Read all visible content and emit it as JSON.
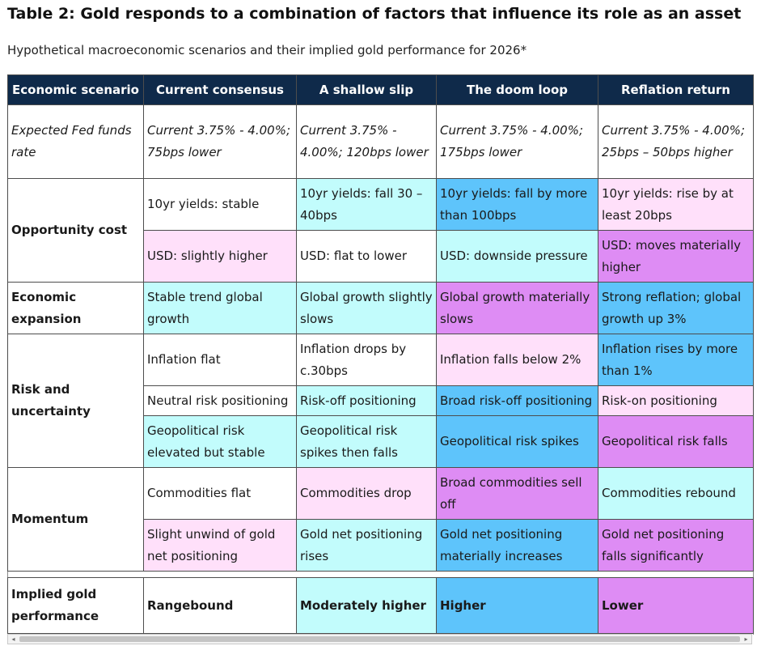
{
  "title": "Table 2: Gold responds to a combination of factors that influence its role as an asset",
  "subtitle": "Hypothetical macroeconomic scenarios and their implied gold performance for 2026*",
  "colors": {
    "header_navy": "#0f2a4a",
    "light_pink": "#ffe0fa",
    "light_cyan": "#c2fcfc",
    "sky_blue": "#5ec4fb",
    "violet": "#de8cf4"
  },
  "table": {
    "headers": [
      "Economic scenario",
      "Current consensus",
      "A shallow slip",
      "The doom loop",
      "Reflation return"
    ],
    "fed": {
      "label": "Expected Fed funds rate",
      "cells": [
        "Current 3.75% - 4.00%; 75bps lower",
        "Current 3.75% - 4.00%; 120bps lower",
        "Current 3.75% - 4.00%; 175bps lower",
        "Current 3.75% - 4.00%; 25bps – 50bps higher"
      ]
    },
    "opportunity": {
      "label": "Opportunity cost",
      "yields": [
        "10yr yields: stable",
        "10yr yields: fall 30 – 40bps",
        "10yr yields: fall by more than 100bps",
        "10yr yields: rise by at least 20bps"
      ],
      "usd": [
        "USD: slightly higher",
        "USD: flat to lower",
        "USD: downside pressure",
        "USD: moves materially higher"
      ]
    },
    "expansion": {
      "label": "Economic expansion",
      "cells": [
        "Stable trend global growth",
        "Global growth slightly slows",
        "Global growth materially slows",
        "Strong reflation; global growth up 3%"
      ]
    },
    "risk": {
      "label": "Risk and uncertainty",
      "inflation": [
        "Inflation flat",
        "Inflation drops by c.30bps",
        "Inflation falls below 2%",
        "Inflation rises by more than 1%"
      ],
      "positioning": [
        "Neutral risk positioning",
        "Risk-off positioning",
        "Broad risk-off positioning",
        "Risk-on positioning"
      ],
      "geopolitical": [
        "Geopolitical risk elevated but stable",
        "Geopolitical risk spikes then falls",
        "Geopolitical risk spikes",
        "Geopolitical risk falls"
      ]
    },
    "momentum": {
      "label": "Momentum",
      "commodities": [
        "Commodities flat",
        "Commodities drop",
        "Broad commodities sell off",
        "Commodities rebound"
      ],
      "gold_positioning": [
        "Slight unwind of gold net positioning",
        "Gold net positioning rises",
        "Gold net positioning materially increases",
        "Gold net positioning falls significantly"
      ]
    },
    "implied": {
      "label": "Implied gold performance",
      "cells": [
        "Rangebound",
        "Moderately higher",
        "Higher",
        "Lower"
      ]
    }
  },
  "scrollbar": {
    "left_arrow": "◂",
    "right_arrow": "▸"
  }
}
